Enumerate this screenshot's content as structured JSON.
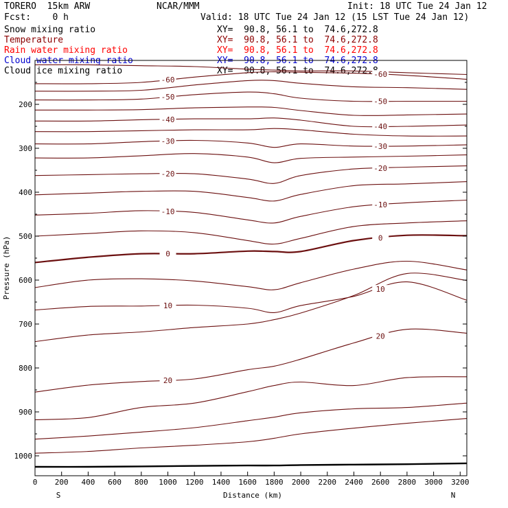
{
  "header": {
    "model": "TORERO  15km ARW",
    "center": "NCAR/MMM",
    "init": "Init: 18 UTC Tue 24 Jan 12",
    "fcst": "Fcst:    0 h",
    "valid": "Valid: 18 UTC Tue 24 Jan 12 (15 LST Tue 24 Jan 12)"
  },
  "legend": [
    {
      "label": "Snow mixing ratio",
      "xy": "XY=  90.8, 56.1 to  74.6,272.8",
      "color": "#000000"
    },
    {
      "label": "Temperature",
      "xy": "XY=  90.8, 56.1 to  74.6,272.8",
      "color": "#8b0000"
    },
    {
      "label": "Rain water mixing ratio",
      "xy": "XY=  90.8, 56.1 to  74.6,272.8",
      "color": "#ff0000"
    },
    {
      "label": "Cloud water mixing ratio",
      "xy": "XY=  90.8, 56.1 to  74.6,272.8",
      "color": "#0000cd"
    },
    {
      "label": "Cloud ice mixing ratio",
      "xy": "XY=  90.8, 56.1 to  74.6,272.8",
      "color": "#000000"
    }
  ],
  "chart_data": {
    "type": "line",
    "xlabel": "Distance (km)",
    "ylabel": "Pressure (hPa)",
    "xlim": [
      0,
      3250
    ],
    "ylim": [
      1050,
      100
    ],
    "x_ticks": [
      0,
      200,
      400,
      600,
      800,
      1000,
      1200,
      1400,
      1600,
      1800,
      2000,
      2200,
      2400,
      2600,
      2800,
      3000,
      3200
    ],
    "y_ticks": [
      200,
      300,
      400,
      500,
      600,
      700,
      800,
      900,
      1000
    ],
    "endpoint_left": "S",
    "endpoint_right": "N",
    "contour_color": "#6b0f0f",
    "contour_label_interval": 10,
    "x": [
      0,
      400,
      800,
      1200,
      1600,
      1800,
      2000,
      2400,
      2800,
      3250
    ],
    "isotherms": [
      {
        "level": null,
        "p": [
          110,
          110,
          112,
          114,
          120,
          122,
          124,
          124,
          128,
          132
        ]
      },
      {
        "level": -60,
        "p": [
          153,
          153,
          150,
          138,
          128,
          126,
          127,
          129,
          134,
          143
        ]
      },
      {
        "level": null,
        "p": [
          170,
          170,
          168,
          156,
          146,
          146,
          152,
          160,
          162,
          166
        ]
      },
      {
        "level": -50,
        "p": [
          190,
          190,
          188,
          178,
          172,
          176,
          186,
          193,
          193,
          193
        ]
      },
      {
        "level": null,
        "p": [
          213,
          213,
          212,
          208,
          206,
          207,
          214,
          225,
          224,
          222
        ]
      },
      {
        "level": -40,
        "p": [
          238,
          238,
          235,
          233,
          233,
          231,
          236,
          250,
          250,
          247
        ]
      },
      {
        "level": null,
        "p": [
          262,
          262,
          260,
          258,
          258,
          255,
          258,
          268,
          272,
          272
        ]
      },
      {
        "level": -30,
        "p": [
          290,
          290,
          285,
          282,
          288,
          298,
          290,
          295,
          295,
          292
        ]
      },
      {
        "level": null,
        "p": [
          322,
          322,
          317,
          312,
          320,
          333,
          323,
          320,
          318,
          315
        ]
      },
      {
        "level": -20,
        "p": [
          362,
          360,
          358,
          358,
          370,
          380,
          362,
          347,
          343,
          340
        ]
      },
      {
        "level": null,
        "p": [
          406,
          402,
          398,
          398,
          412,
          420,
          405,
          385,
          381,
          376
        ]
      },
      {
        "level": -10,
        "p": [
          452,
          448,
          442,
          446,
          463,
          470,
          455,
          433,
          424,
          418
        ]
      },
      {
        "level": null,
        "p": [
          500,
          494,
          488,
          492,
          510,
          518,
          505,
          478,
          470,
          465
        ]
      },
      {
        "level": 0,
        "p": [
          560,
          548,
          540,
          540,
          534,
          535,
          535,
          510,
          498,
          499
        ],
        "bold": true
      },
      {
        "level": null,
        "p": [
          617,
          600,
          597,
          602,
          615,
          622,
          606,
          575,
          557,
          577
        ]
      },
      {
        "level": 10,
        "p": [
          668,
          660,
          659,
          657,
          664,
          674,
          658,
          637,
          604,
          646
        ]
      },
      {
        "level": null,
        "p": [
          740,
          725,
          718,
          708,
          700,
          690,
          675,
          635,
          585,
          601
        ]
      },
      {
        "level": 20,
        "p": [
          855,
          839,
          831,
          825,
          804,
          796,
          780,
          743,
          712,
          721
        ]
      },
      {
        "level": null,
        "p": [
          918,
          913,
          890,
          880,
          854,
          840,
          832,
          840,
          822,
          820
        ]
      },
      {
        "level": null,
        "p": [
          962,
          955,
          946,
          936,
          920,
          912,
          902,
          893,
          890,
          880
        ]
      },
      {
        "level": null,
        "p": [
          994,
          990,
          982,
          976,
          968,
          960,
          950,
          937,
          926,
          915
        ]
      }
    ],
    "ground_p": [
      1025,
      1025,
      1024,
      1023,
      1022,
      1022,
      1021,
      1020,
      1019,
      1017
    ]
  }
}
